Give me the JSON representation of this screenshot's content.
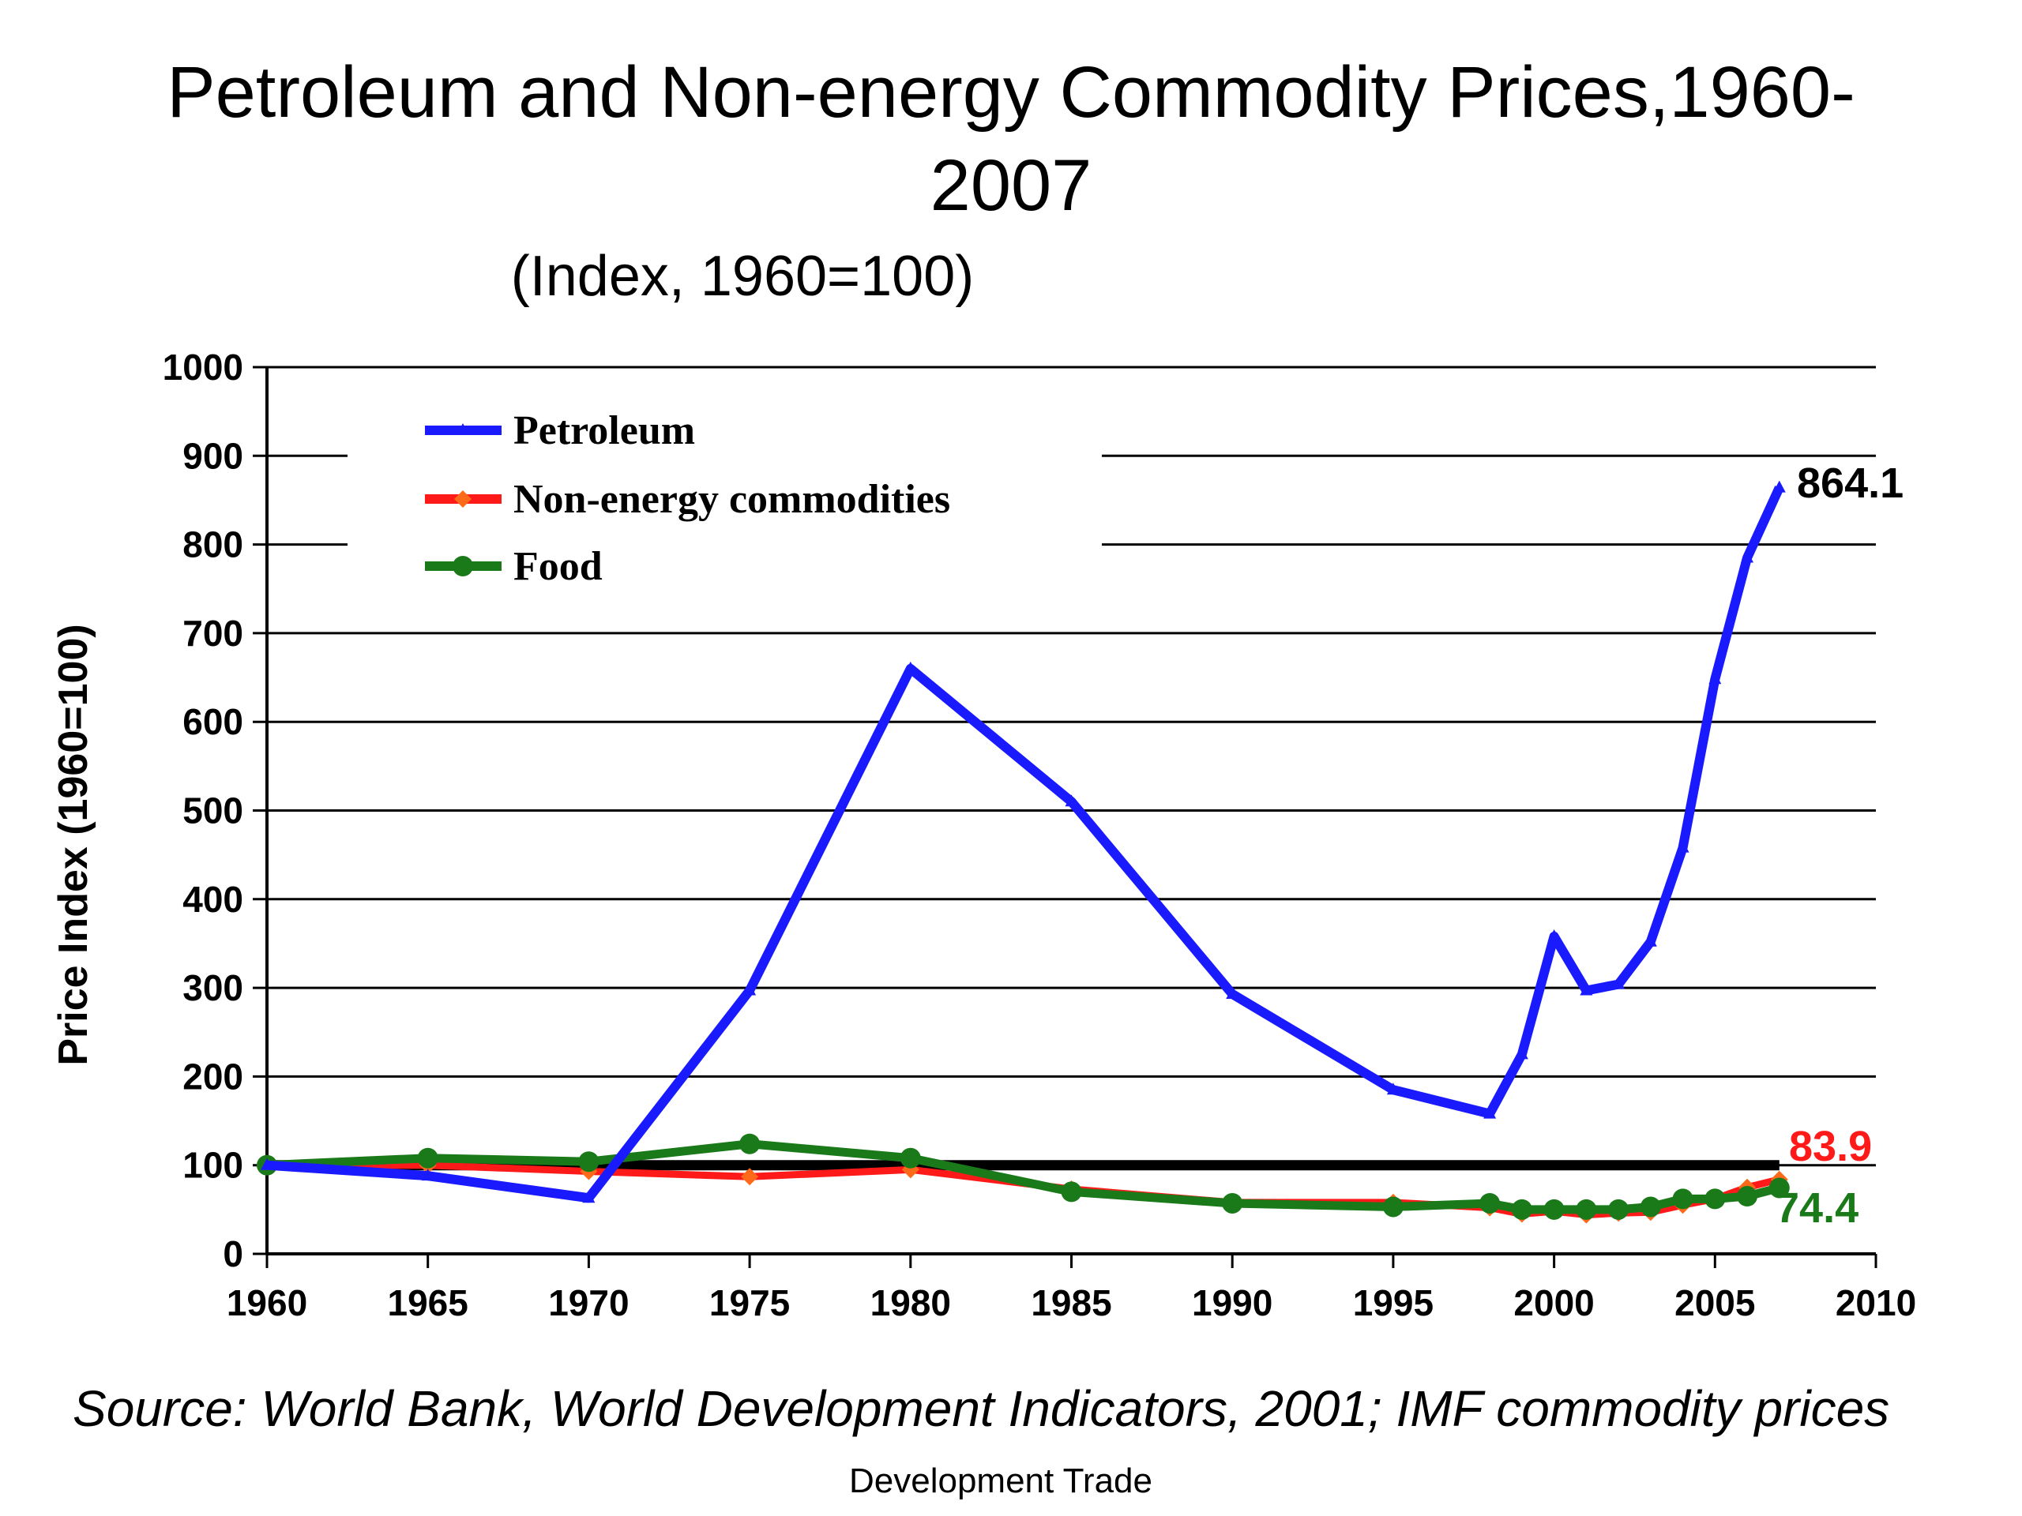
{
  "chart_data": {
    "type": "line",
    "title_line1": "Petroleum and Non-energy Commodity Prices,1960-",
    "title_line2": "2007",
    "subtitle": "(Index, 1960=100)",
    "ylabel": "Price Index (1960=100)",
    "xlabel": "",
    "xlim": [
      1960,
      2010
    ],
    "ylim": [
      0,
      1000
    ],
    "x_ticks": [
      1960,
      1965,
      1970,
      1975,
      1980,
      1985,
      1990,
      1995,
      2000,
      2005,
      2010
    ],
    "y_ticks": [
      0,
      100,
      200,
      300,
      400,
      500,
      600,
      700,
      800,
      900,
      1000
    ],
    "grid": "horizontal",
    "legend_position": "top-left",
    "reference_line": {
      "y": 100,
      "x_range": [
        1960,
        2007
      ],
      "color": "#000000"
    },
    "series": [
      {
        "name": "Petroleum",
        "color": "#1a1aff",
        "marker": "triangle",
        "x": [
          1960,
          1965,
          1970,
          1975,
          1980,
          1985,
          1990,
          1995,
          1998,
          1999,
          2000,
          2001,
          2002,
          2003,
          2004,
          2005,
          2006,
          2007
        ],
        "y": [
          100,
          88,
          63,
          297,
          660,
          510,
          293,
          185,
          158,
          225,
          358,
          297,
          304,
          352,
          458,
          648,
          785,
          864.1
        ],
        "end_label": "864.1",
        "end_label_color": "#000000"
      },
      {
        "name": "Non-energy commodities",
        "color": "#ff1a1a",
        "marker": "diamond",
        "x": [
          1960,
          1965,
          1970,
          1975,
          1980,
          1985,
          1990,
          1995,
          1998,
          1999,
          2000,
          2001,
          2002,
          2003,
          2004,
          2005,
          2006,
          2007
        ],
        "y": [
          100,
          100,
          93,
          87,
          95,
          73,
          58,
          58,
          52,
          45,
          48,
          44,
          46,
          47,
          55,
          62,
          75,
          83.9
        ],
        "end_label": "83.9",
        "end_label_color": "#ff1a1a"
      },
      {
        "name": "Food",
        "color": "#1a7a1a",
        "marker": "circle",
        "x": [
          1960,
          1965,
          1970,
          1975,
          1980,
          1985,
          1990,
          1995,
          1998,
          1999,
          2000,
          2001,
          2002,
          2003,
          2004,
          2005,
          2006,
          2007
        ],
        "y": [
          100,
          108,
          104,
          124,
          108,
          70,
          57,
          53,
          57,
          50,
          50,
          50,
          50,
          53,
          62,
          62,
          65,
          74.4
        ],
        "end_label": "74.4",
        "end_label_color": "#1a7a1a"
      }
    ]
  },
  "source": "Source: World Bank, World Development Indicators, 2001; IMF commodity prices",
  "footer": "Development Trade"
}
